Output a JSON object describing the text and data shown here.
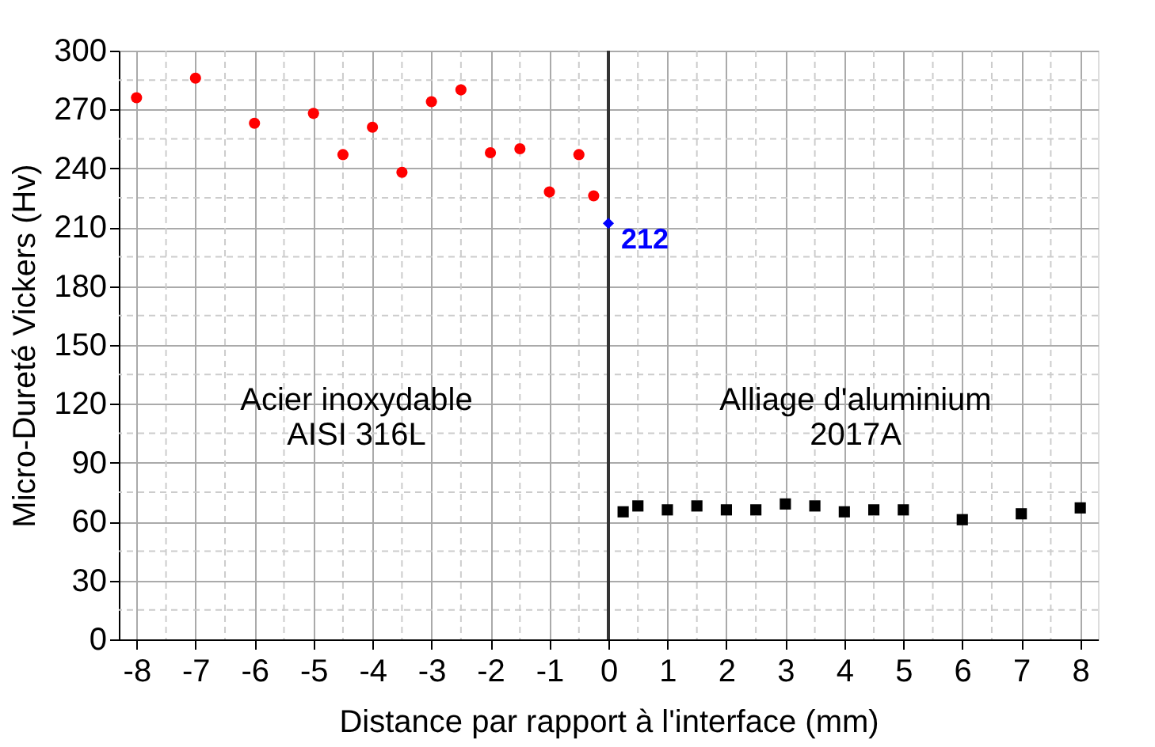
{
  "chart_data": {
    "type": "scatter",
    "xlabel": "Distance par rapport à l'interface (mm)",
    "ylabel": "Micro-Dureté Vickers (Hv)",
    "xlim": [
      -8.3,
      8.3
    ],
    "ylim": [
      0,
      300
    ],
    "xticks": [
      -8,
      -7,
      -6,
      -5,
      -4,
      -3,
      -2,
      -1,
      0,
      1,
      2,
      3,
      4,
      5,
      6,
      7,
      8
    ],
    "yticks": [
      0,
      30,
      60,
      90,
      120,
      150,
      180,
      210,
      240,
      270,
      300
    ],
    "grid": true,
    "series": [
      {
        "color": "#ff0000",
        "marker": "circle",
        "x": [
          -8,
          -7,
          -6,
          -5,
          -4.5,
          -4,
          -3.5,
          -3,
          -2.5,
          -2,
          -1.5,
          -1,
          -0.5,
          -0.25
        ],
        "values": [
          276,
          286,
          263,
          268,
          247,
          261,
          238,
          274,
          280,
          248,
          250,
          228,
          247,
          226
        ]
      },
      {
        "color": "#0000ff",
        "marker": "diamond",
        "x": [
          0
        ],
        "values": [
          212
        ],
        "value_labels": [
          "212"
        ]
      },
      {
        "color": "#000000",
        "marker": "square",
        "x": [
          0.25,
          0.5,
          1,
          1.5,
          2,
          2.5,
          3,
          3.5,
          4,
          4.5,
          5,
          6,
          7,
          8
        ],
        "values": [
          65,
          68,
          66,
          68,
          66,
          66,
          69,
          68,
          65,
          66,
          66,
          61,
          64,
          67
        ]
      }
    ],
    "ref_lines": [
      {
        "axis": "x",
        "value": 0,
        "color": "#333333"
      }
    ],
    "annotations": [
      "Acier inoxydable\nAISI 316L",
      "Alliage d'aluminium\n2017A"
    ]
  }
}
